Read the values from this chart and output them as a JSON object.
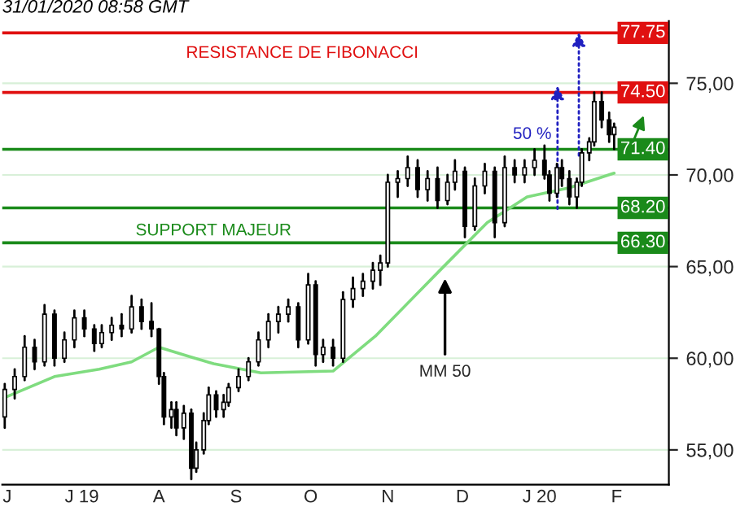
{
  "chart_data": {
    "type": "candlestick",
    "annotations": [
      "31/01/2020 08:58 GMT",
      "RESISTANCE DE FIBONACCI",
      "SUPPORT MAJEUR",
      "50 %",
      {
        "text": "MM 50",
        "x": "2019-11-24",
        "y": 64.6
      }
    ],
    "x": [
      "2019-05-31",
      "2019-06-04",
      "2019-06-08",
      "2019-06-12",
      "2019-06-16",
      "2019-06-20",
      "2019-06-24",
      "2019-06-28",
      "2019-07-02",
      "2019-07-06",
      "2019-07-09",
      "2019-07-13",
      "2019-07-17",
      "2019-07-21",
      "2019-07-25",
      "2019-07-29",
      "2019-08-01",
      "2019-08-03",
      "2019-08-06",
      "2019-08-08",
      "2019-08-11",
      "2019-08-14",
      "2019-08-16",
      "2019-08-19",
      "2019-08-21",
      "2019-08-24",
      "2019-08-27",
      "2019-08-29",
      "2019-09-02",
      "2019-09-06",
      "2019-09-10",
      "2019-09-14",
      "2019-09-18",
      "2019-09-22",
      "2019-09-26",
      "2019-09-30",
      "2019-10-03",
      "2019-10-06",
      "2019-10-10",
      "2019-10-14",
      "2019-10-18",
      "2019-10-22",
      "2019-10-26",
      "2019-10-29",
      "2019-11-01",
      "2019-11-05",
      "2019-11-09",
      "2019-11-13",
      "2019-11-17",
      "2019-11-21",
      "2019-11-25",
      "2019-11-28",
      "2019-12-02",
      "2019-12-06",
      "2019-12-10",
      "2019-12-14",
      "2019-12-18",
      "2019-12-22",
      "2019-12-26",
      "2019-12-30",
      "2020-01-03",
      "2020-01-05",
      "2020-01-08",
      "2020-01-10",
      "2020-01-13",
      "2020-01-16",
      "2020-01-18",
      "2020-01-21",
      "2020-01-23",
      "2020-01-26",
      "2020-01-29",
      "2020-01-31"
    ],
    "ohlc": [
      [
        56.8,
        58.6,
        56.2,
        58.3
      ],
      [
        58.3,
        59.4,
        57.8,
        59.0
      ],
      [
        59.0,
        61.2,
        58.8,
        60.6
      ],
      [
        60.6,
        61.0,
        59.4,
        59.8
      ],
      [
        59.8,
        62.9,
        59.6,
        62.4
      ],
      [
        62.4,
        62.6,
        59.6,
        60.0
      ],
      [
        60.0,
        61.4,
        59.8,
        61.0
      ],
      [
        61.0,
        62.6,
        60.6,
        62.2
      ],
      [
        62.2,
        62.6,
        61.2,
        61.6
      ],
      [
        61.6,
        61.8,
        60.4,
        60.8
      ],
      [
        60.8,
        61.8,
        60.6,
        61.4
      ],
      [
        61.4,
        62.2,
        61.0,
        61.8
      ],
      [
        61.8,
        62.4,
        61.2,
        61.6
      ],
      [
        61.6,
        63.4,
        61.4,
        62.8
      ],
      [
        62.8,
        63.2,
        61.6,
        62.0
      ],
      [
        62.0,
        63.0,
        61.2,
        61.6
      ],
      [
        61.6,
        61.6,
        58.6,
        59.0
      ],
      [
        59.0,
        59.2,
        56.4,
        56.8
      ],
      [
        56.8,
        57.6,
        56.2,
        57.2
      ],
      [
        57.2,
        57.6,
        55.8,
        56.2
      ],
      [
        56.2,
        57.4,
        55.6,
        57.0
      ],
      [
        57.0,
        57.2,
        53.4,
        54.0
      ],
      [
        54.0,
        55.4,
        53.8,
        55.0
      ],
      [
        55.0,
        57.0,
        54.8,
        56.6
      ],
      [
        56.6,
        58.4,
        56.4,
        58.0
      ],
      [
        58.0,
        58.2,
        56.8,
        57.2
      ],
      [
        57.2,
        58.0,
        56.8,
        57.6
      ],
      [
        57.6,
        58.6,
        57.4,
        58.4
      ],
      [
        58.4,
        59.4,
        58.2,
        59.0
      ],
      [
        59.0,
        60.0,
        58.8,
        59.8
      ],
      [
        59.8,
        61.4,
        59.6,
        61.0
      ],
      [
        61.0,
        62.4,
        60.6,
        62.0
      ],
      [
        62.0,
        62.8,
        61.4,
        62.4
      ],
      [
        62.4,
        63.2,
        62.0,
        62.8
      ],
      [
        62.8,
        63.0,
        60.6,
        61.0
      ],
      [
        61.0,
        64.6,
        60.8,
        64.0
      ],
      [
        64.0,
        64.2,
        59.6,
        60.2
      ],
      [
        60.2,
        61.0,
        59.8,
        60.6
      ],
      [
        60.6,
        61.0,
        59.6,
        60.0
      ],
      [
        60.0,
        63.6,
        59.8,
        63.2
      ],
      [
        63.2,
        64.4,
        62.8,
        63.8
      ],
      [
        63.8,
        64.6,
        63.4,
        64.2
      ],
      [
        64.2,
        65.2,
        63.8,
        64.8
      ],
      [
        64.8,
        65.6,
        64.0,
        65.2
      ],
      [
        65.2,
        70.0,
        65.0,
        69.6
      ],
      [
        69.6,
        70.2,
        68.8,
        69.8
      ],
      [
        69.8,
        71.0,
        69.4,
        70.4
      ],
      [
        70.4,
        70.8,
        68.8,
        69.2
      ],
      [
        69.2,
        70.2,
        68.6,
        69.8
      ],
      [
        69.8,
        70.4,
        68.2,
        68.6
      ],
      [
        68.6,
        70.0,
        68.4,
        69.6
      ],
      [
        69.6,
        70.8,
        69.2,
        70.2
      ],
      [
        70.2,
        70.4,
        66.6,
        67.2
      ],
      [
        67.2,
        69.8,
        67.0,
        69.4
      ],
      [
        69.4,
        70.6,
        69.0,
        70.2
      ],
      [
        70.2,
        70.4,
        66.6,
        67.4
      ],
      [
        67.4,
        71.0,
        67.2,
        70.4
      ],
      [
        70.4,
        70.8,
        69.6,
        70.0
      ],
      [
        70.0,
        70.8,
        69.6,
        70.4
      ],
      [
        70.4,
        71.4,
        70.0,
        70.8
      ],
      [
        70.8,
        71.6,
        69.8,
        70.0
      ],
      [
        70.0,
        70.2,
        68.6,
        69.0
      ],
      [
        69.0,
        70.6,
        68.8,
        70.4
      ],
      [
        70.4,
        70.8,
        69.4,
        69.8
      ],
      [
        69.8,
        70.2,
        68.4,
        68.8
      ],
      [
        68.8,
        69.8,
        68.2,
        69.6
      ],
      [
        69.6,
        71.4,
        69.4,
        71.2
      ],
      [
        71.2,
        72.0,
        70.8,
        71.8
      ],
      [
        71.8,
        74.5,
        71.6,
        74.0
      ],
      [
        74.0,
        74.5,
        72.6,
        73.0
      ],
      [
        73.0,
        73.4,
        71.8,
        72.2
      ],
      [
        72.2,
        72.8,
        71.4,
        72.6
      ]
    ],
    "color": "#000000",
    "series": [
      {
        "type": "line",
        "color": "#7fdc7f",
        "x": [
          "2019-05-30",
          "2019-06-20",
          "2019-07-08",
          "2019-07-21",
          "2019-08-01",
          "2019-08-13",
          "2019-08-23",
          "2019-09-11",
          "2019-10-10",
          "2019-10-27",
          "2019-11-22",
          "2019-12-11",
          "2019-12-27",
          "2020-01-13",
          "2020-01-31"
        ],
        "values": [
          57.8,
          59.0,
          59.4,
          59.8,
          60.6,
          60.1,
          59.7,
          59.2,
          59.3,
          61.2,
          64.8,
          67.4,
          68.8,
          69.3,
          70.1
        ]
      }
    ],
    "ref_lines": [
      {
        "axis": "y",
        "value": 77.75,
        "label": "77.75",
        "color": "#e01010"
      },
      {
        "axis": "y",
        "value": 74.5,
        "label": "74.50",
        "color": "#e01010"
      },
      {
        "axis": "y",
        "value": 71.4,
        "label": "71.40",
        "color": "#1a8a1a"
      },
      {
        "axis": "y",
        "value": 68.2,
        "label": "68.20",
        "color": "#1a8a1a"
      },
      {
        "axis": "y",
        "value": 66.3,
        "label": "66.30",
        "color": "#1a8a1a"
      }
    ],
    "xlim": [
      "2019-05-30",
      "2020-02-22"
    ],
    "xticks": [
      {
        "value": "2019-06-01",
        "label": "J"
      },
      {
        "value": "2019-07-01",
        "label": "J 19"
      },
      {
        "value": "2019-08-01",
        "label": "A"
      },
      {
        "value": "2019-09-01",
        "label": "S"
      },
      {
        "value": "2019-10-01",
        "label": "O"
      },
      {
        "value": "2019-11-01",
        "label": "N"
      },
      {
        "value": "2019-12-01",
        "label": "D"
      },
      {
        "value": "2020-01-01",
        "label": "J 20"
      },
      {
        "value": "2020-02-01",
        "label": "F"
      }
    ],
    "ylim": [
      53.1,
      78.4
    ],
    "yticks": [
      {
        "value": 55,
        "label": "55,00"
      },
      {
        "value": 60,
        "label": "60,00"
      },
      {
        "value": 65,
        "label": "65,00"
      },
      {
        "value": 70,
        "label": "70,00"
      },
      {
        "value": 75,
        "label": "75,00"
      }
    ],
    "grid": "y",
    "legend": false,
    "marker": "none",
    "line_style": "solid"
  }
}
